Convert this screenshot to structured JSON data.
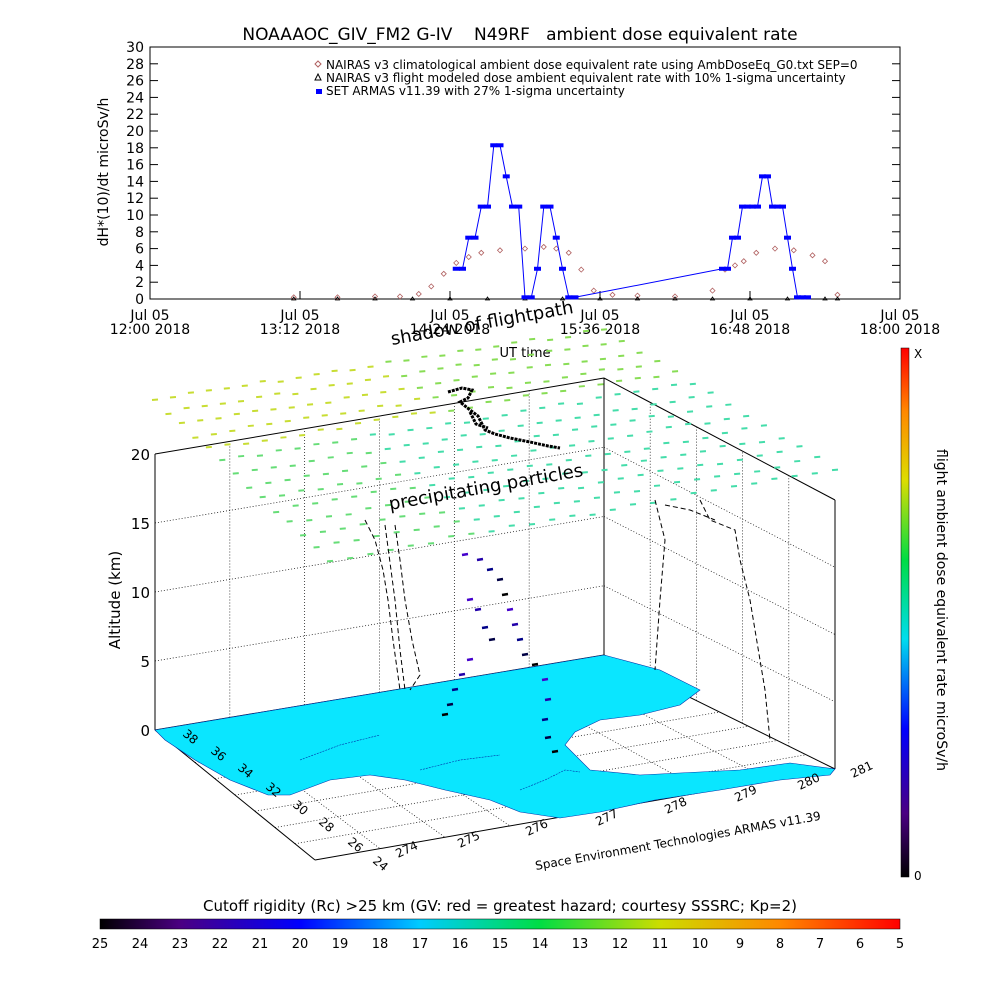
{
  "chart_data": [
    {
      "type": "line",
      "title": "NOAAAOC_GIV_FM2 G-IV    N49RF   ambient dose equivalent rate",
      "ylabel": "dH*(10)/dt microSv/h",
      "xlabel": "UT time",
      "ylim": [
        0,
        30
      ],
      "y_ticks": [
        "0",
        "2",
        "4",
        "6",
        "8",
        "10",
        "12",
        "14",
        "16",
        "18",
        "20",
        "22",
        "24",
        "26",
        "28",
        "30"
      ],
      "x_range_hours": [
        12.0,
        18.0
      ],
      "x_ticks": [
        {
          "t": 12.0,
          "l1": "Jul 05",
          "l2": "12:00 2018"
        },
        {
          "t": 13.2,
          "l1": "Jul 05",
          "l2": "13:12 2018"
        },
        {
          "t": 14.4,
          "l1": "Jul 05",
          "l2": "14:24 2018"
        },
        {
          "t": 15.6,
          "l1": "Jul 05",
          "l2": "15:36 2018"
        },
        {
          "t": 16.8,
          "l1": "Jul 05",
          "l2": "16:48 2018"
        },
        {
          "t": 18.0,
          "l1": "Jul 05",
          "l2": "18:00 2018"
        }
      ],
      "legend_placement": "top-right",
      "series": [
        {
          "name": "NAIRAS v3 climatological ambient dose equivalent rate using AmbDoseEq_G0.txt SEP=0",
          "color": "#b06060",
          "marker": "diamond",
          "x": [
            13.15,
            13.5,
            13.8,
            14.0,
            14.15,
            14.25,
            14.35,
            14.45,
            14.55,
            14.65,
            14.8,
            15.0,
            15.15,
            15.25,
            15.35,
            15.45,
            15.55,
            15.7,
            15.9,
            16.2,
            16.5,
            16.6,
            16.68,
            16.75,
            16.85,
            17.0,
            17.15,
            17.3,
            17.4,
            17.5
          ],
          "y": [
            0.2,
            0.2,
            0.3,
            0.3,
            0.6,
            1.5,
            3.0,
            4.3,
            5.0,
            5.5,
            5.8,
            6.0,
            6.2,
            6.0,
            5.5,
            3.5,
            1.0,
            0.5,
            0.4,
            0.3,
            1.0,
            3.5,
            4.0,
            4.5,
            5.5,
            6.0,
            5.8,
            5.2,
            4.5,
            0.5
          ]
        },
        {
          "name": "NAIRAS v3 flight modeled dose ambient equivalent rate with 10% 1-sigma uncertainty",
          "color": "#000000",
          "marker": "triangle",
          "x": [
            13.15,
            13.5,
            13.8,
            14.1,
            14.4,
            14.7,
            15.0,
            15.3,
            15.6,
            15.9,
            16.2,
            16.5,
            16.8,
            17.1,
            17.4,
            17.5
          ],
          "y": [
            0,
            0,
            0,
            0,
            0,
            0,
            0,
            0,
            0,
            0,
            0,
            0,
            0,
            0,
            0,
            0
          ]
        },
        {
          "name": "SET ARMAS v11.39 with 27% 1-sigma uncertainty",
          "color": "#0000ff",
          "marker": "square",
          "x": [
            14.45,
            14.5,
            14.55,
            14.6,
            14.65,
            14.7,
            14.75,
            14.8,
            14.85,
            14.9,
            14.95,
            15.0,
            15.05,
            15.1,
            15.15,
            15.2,
            15.25,
            15.3,
            15.35,
            15.4,
            16.58,
            16.62,
            16.66,
            16.7,
            16.74,
            16.78,
            16.82,
            16.86,
            16.9,
            16.94,
            16.98,
            17.02,
            17.06,
            17.1,
            17.14,
            17.18,
            17.22,
            17.26
          ],
          "y": [
            3.6,
            3.6,
            7.3,
            7.3,
            11.0,
            11.0,
            18.3,
            18.3,
            14.6,
            11.0,
            11.0,
            0.2,
            0.2,
            3.6,
            11.0,
            11.0,
            7.3,
            3.6,
            0.2,
            0.2,
            3.6,
            3.6,
            7.3,
            7.3,
            11.0,
            11.0,
            11.0,
            11.0,
            14.6,
            14.6,
            11.0,
            11.0,
            11.0,
            7.3,
            3.6,
            0.2,
            0.2,
            0.2
          ]
        }
      ]
    },
    {
      "type": "scatter",
      "subtype": "3d-perspective",
      "zlabel": "Altitude (km)",
      "z_ticks": [
        "0",
        "5",
        "10",
        "15",
        "20"
      ],
      "zlim": [
        0,
        20
      ],
      "lon_ticks": [
        "274",
        "275",
        "276",
        "277",
        "278",
        "279",
        "280",
        "281"
      ],
      "lat_ticks": [
        "24",
        "26",
        "28",
        "30",
        "32",
        "34",
        "36",
        "38"
      ],
      "annotations": {
        "shadow": "shadow of flightpath",
        "precip": "precipitating particles",
        "credit": "Space Environment Technologies ARMAS v11.39"
      }
    }
  ],
  "colorbar_right": {
    "label": "flight ambient dose equivalent rate microSv/h",
    "top": "X",
    "bottom": "0"
  },
  "colorbar_bottom": {
    "title": "Cutoff rigidity (Rc) >25 km (GV: red = greatest hazard; courtesy SSSRC; Kp=2)",
    "ticks": [
      "25",
      "24",
      "23",
      "22",
      "21",
      "20",
      "19",
      "18",
      "17",
      "16",
      "15",
      "14",
      "13",
      "12",
      "11",
      "10",
      "9",
      "8",
      "7",
      "6",
      "5"
    ]
  },
  "colors": {
    "land": "#0ae6ff",
    "precip_light": "#44ddaa",
    "precip_dark": "#c8dd33",
    "frame": "#000000"
  }
}
